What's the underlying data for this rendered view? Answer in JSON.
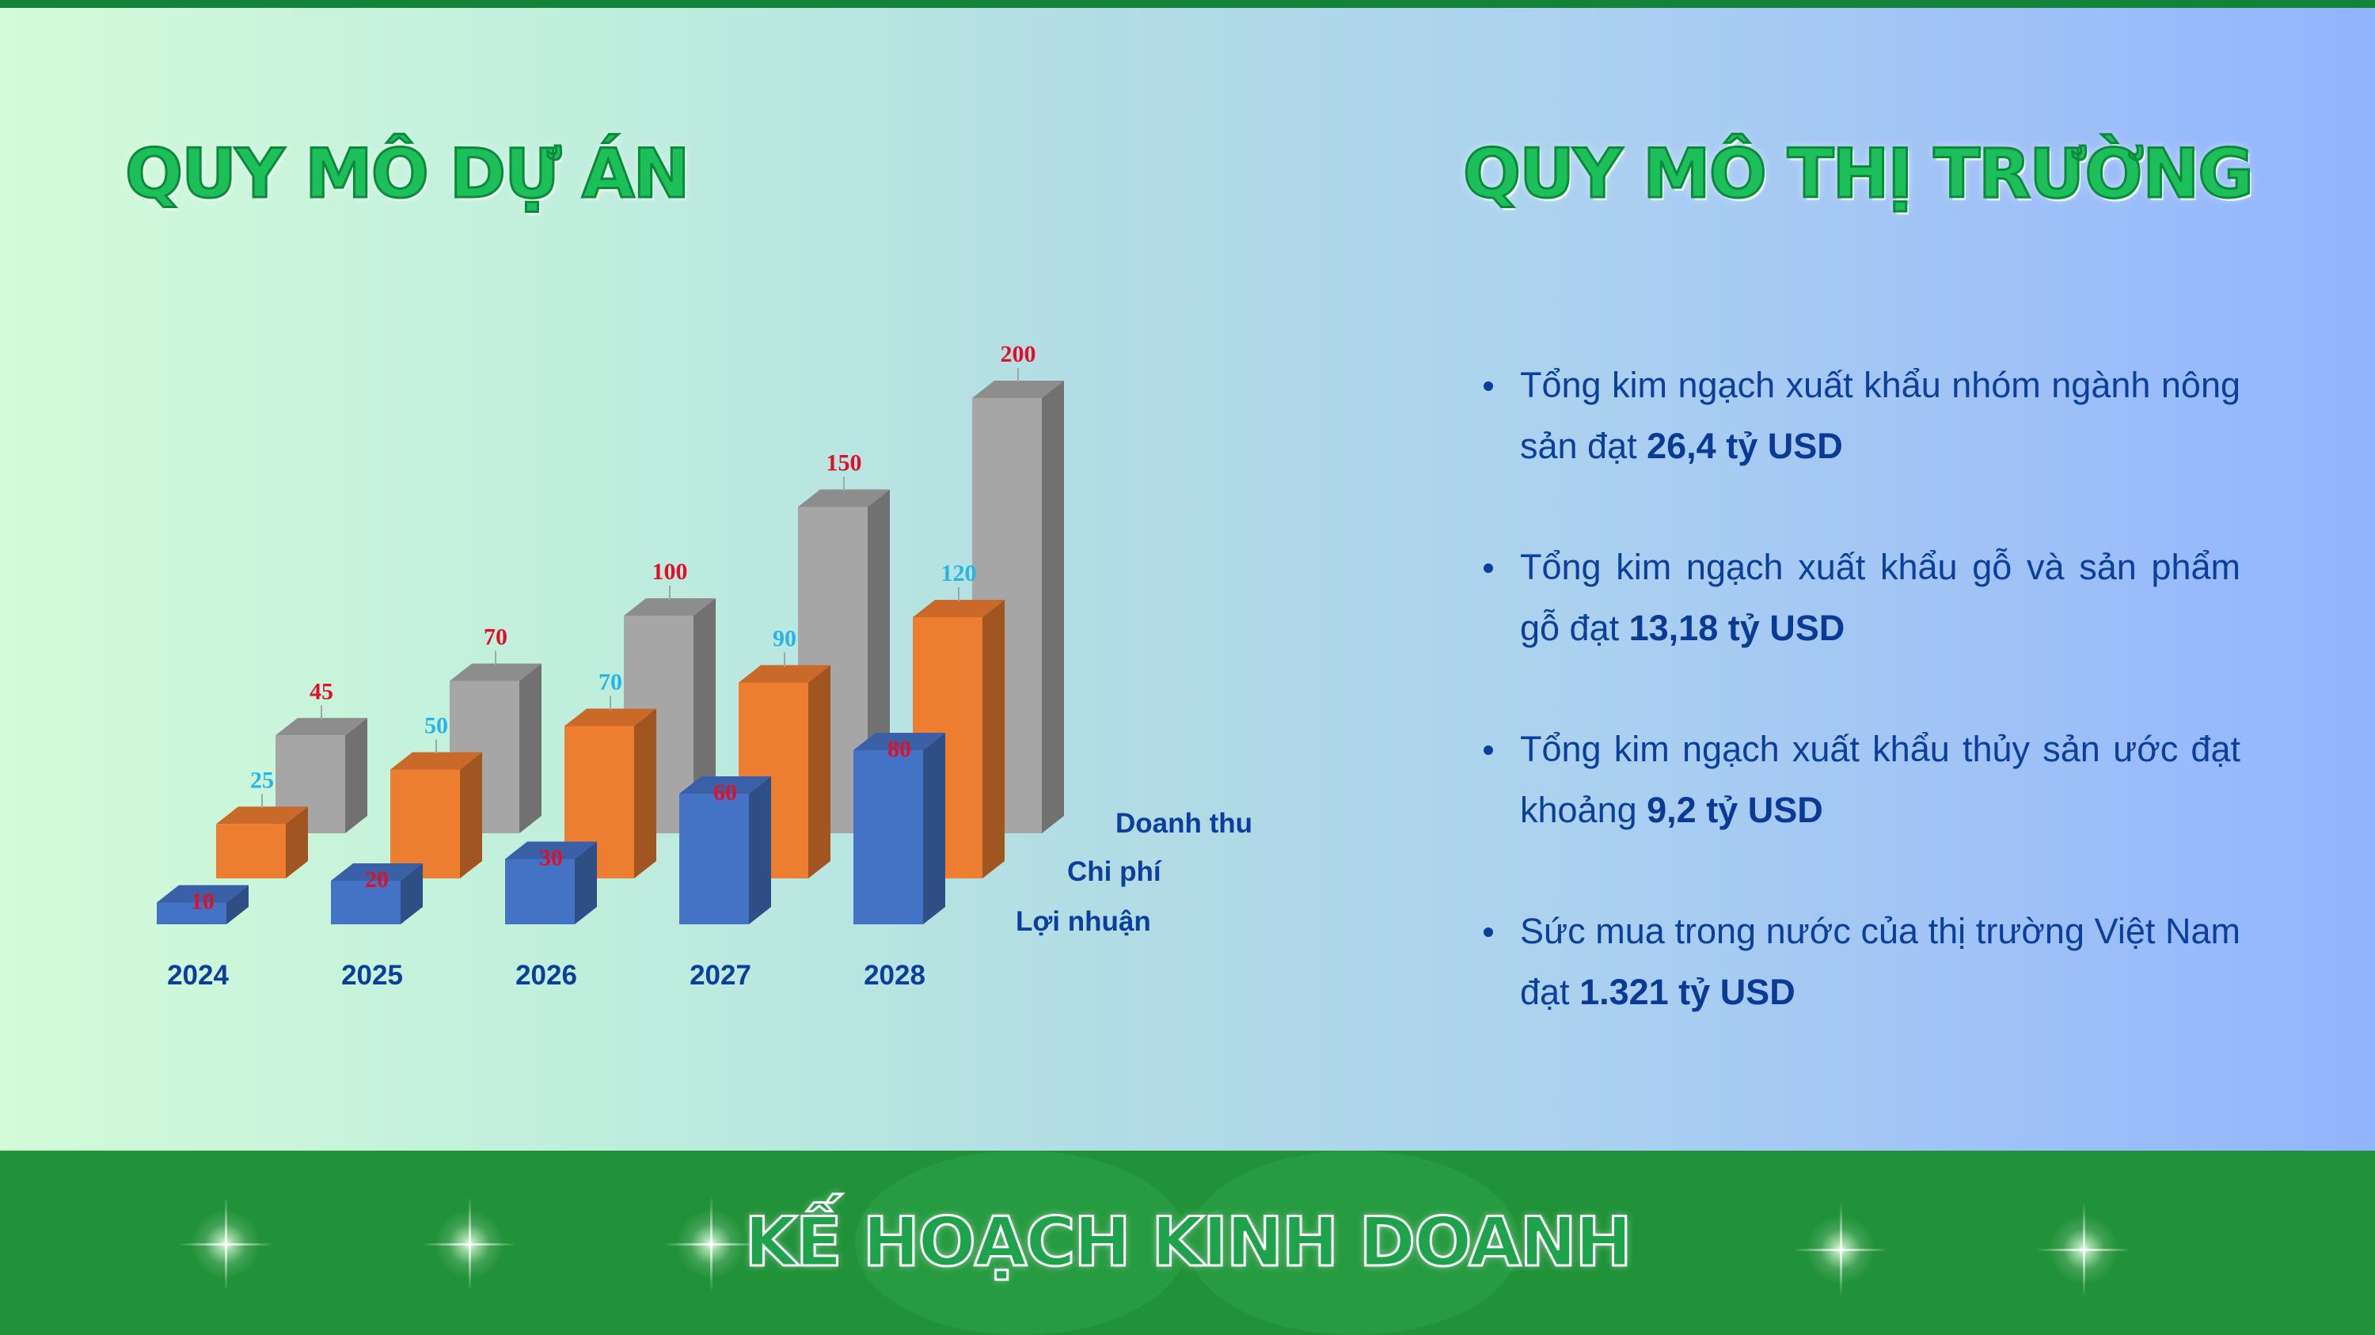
{
  "page": {
    "title_left": "QUY MÔ DỰ ÁN",
    "title_right": "QUY MÔ THỊ TRƯỜNG",
    "footer_title": "KẾ HOẠCH KINH DOANH"
  },
  "market": {
    "items": [
      {
        "text": "Tổng kim ngạch xuất khẩu nhóm ngành nông sản đạt ",
        "value": "26,4 tỷ USD"
      },
      {
        "text": "Tổng kim ngạch xuất khẩu gỗ và sản phẩm gỗ đạt ",
        "value": "13,18 tỷ USD"
      },
      {
        "text": "Tổng kim ngạch xuất khẩu thủy sản ước đạt khoảng ",
        "value": "9,2 tỷ USD"
      },
      {
        "text": "Sức mua trong nước của thị trường Việt Nam đạt ",
        "value": "1.321 tỷ USD"
      }
    ]
  },
  "chart_data": {
    "type": "bar",
    "categories": [
      "2024",
      "2025",
      "2026",
      "2027",
      "2028"
    ],
    "series": [
      {
        "name": "Doanh thu",
        "values": [
          45,
          70,
          100,
          150,
          200
        ],
        "color": "#a6a6a6",
        "label_color": "#e0102a"
      },
      {
        "name": "Chi phí",
        "values": [
          25,
          50,
          70,
          90,
          120
        ],
        "color": "#ed7d31",
        "label_color": "#28b4e8"
      },
      {
        "name": "Lợi nhuận",
        "values": [
          10,
          20,
          30,
          60,
          80
        ],
        "color": "#4472c4",
        "label_color": "#e0102a"
      }
    ],
    "legend_position": "right",
    "grid": false
  },
  "colors": {
    "title_green": "#1cbf5a",
    "text_blue": "#0c3f9c",
    "footer_green": "#219239"
  }
}
